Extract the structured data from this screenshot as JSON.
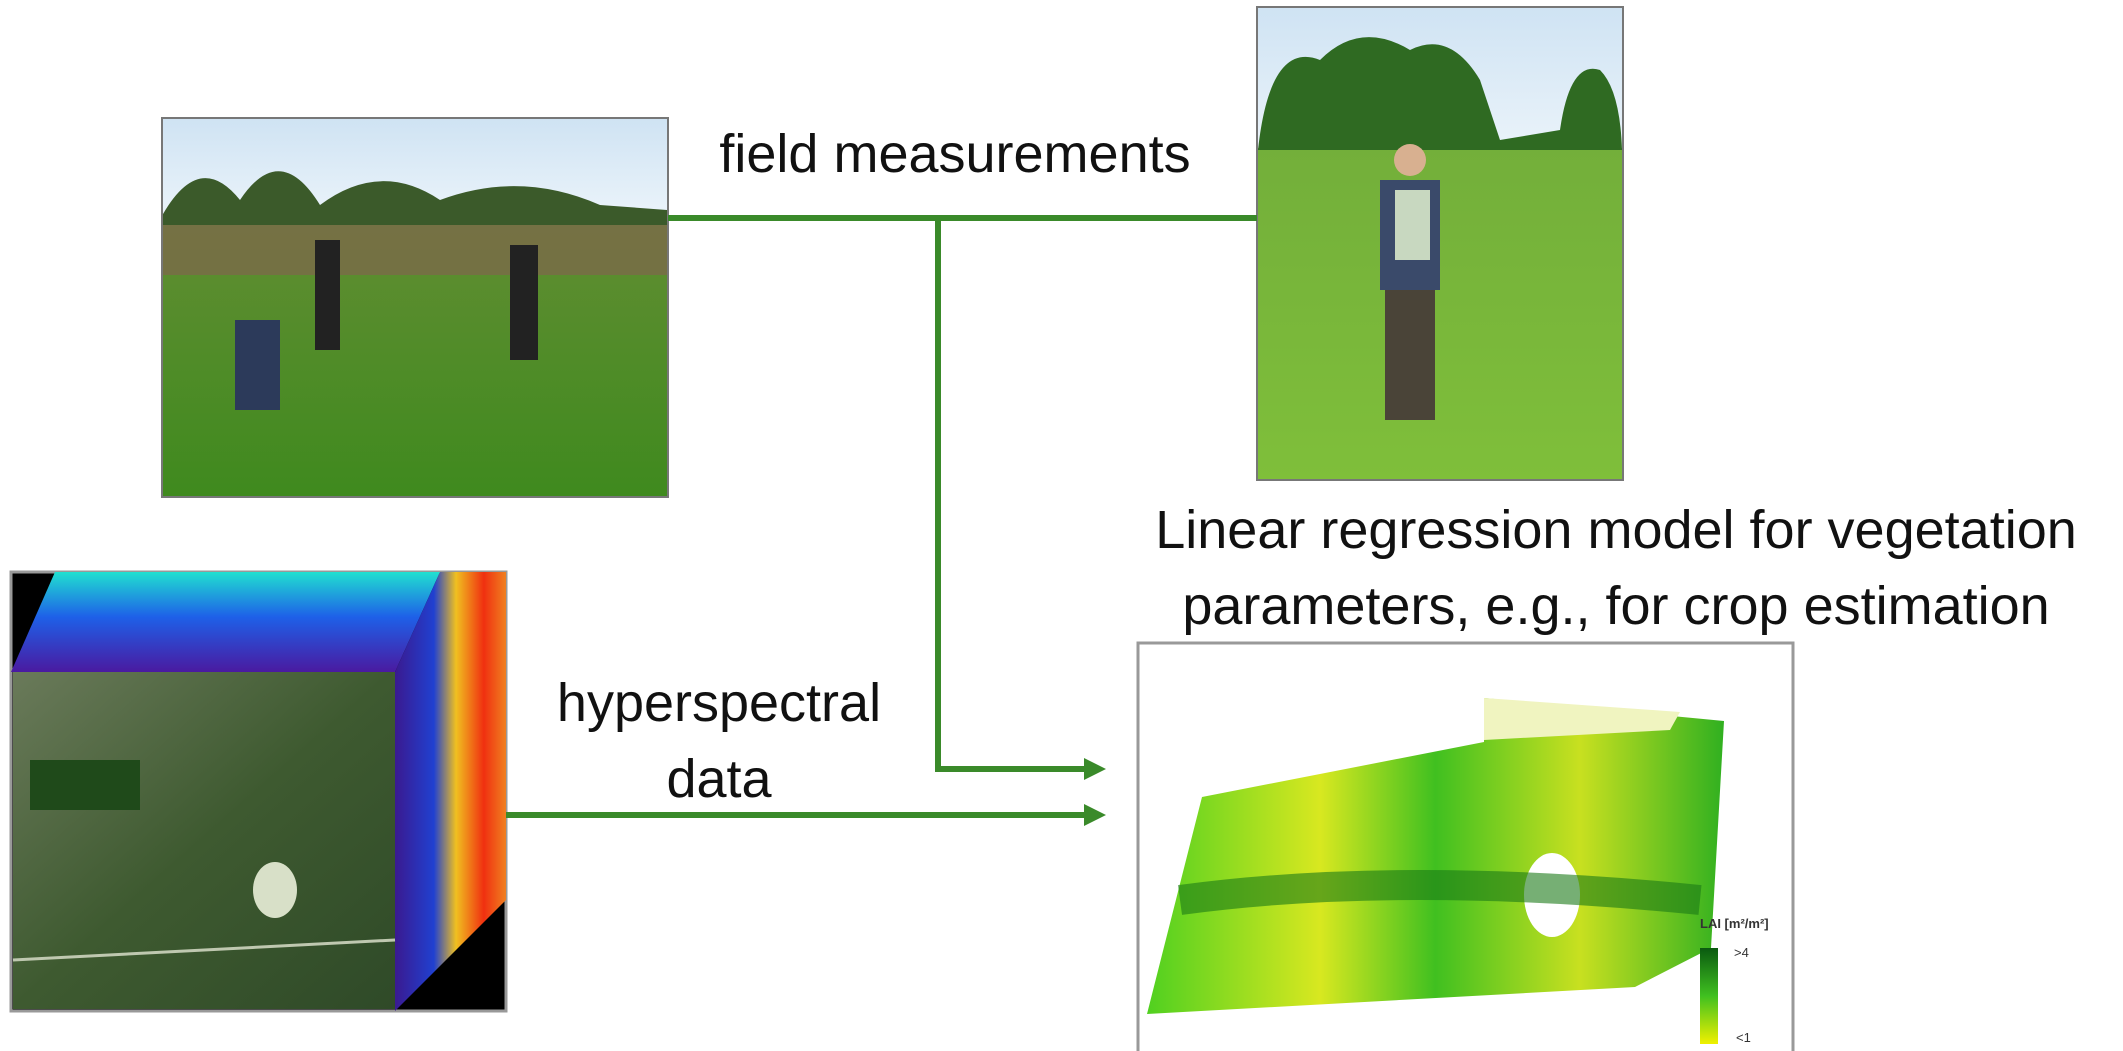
{
  "labels": {
    "field_measurements": "field measurements",
    "hyperspectral_data": [
      "hyperspectral",
      "data"
    ],
    "model": [
      "Linear regression model for vegetation",
      "parameters, e.g., for crop estimation"
    ]
  },
  "legend": {
    "title": "LAI [m²/m²]",
    "max": ">4",
    "min": "<1"
  }
}
